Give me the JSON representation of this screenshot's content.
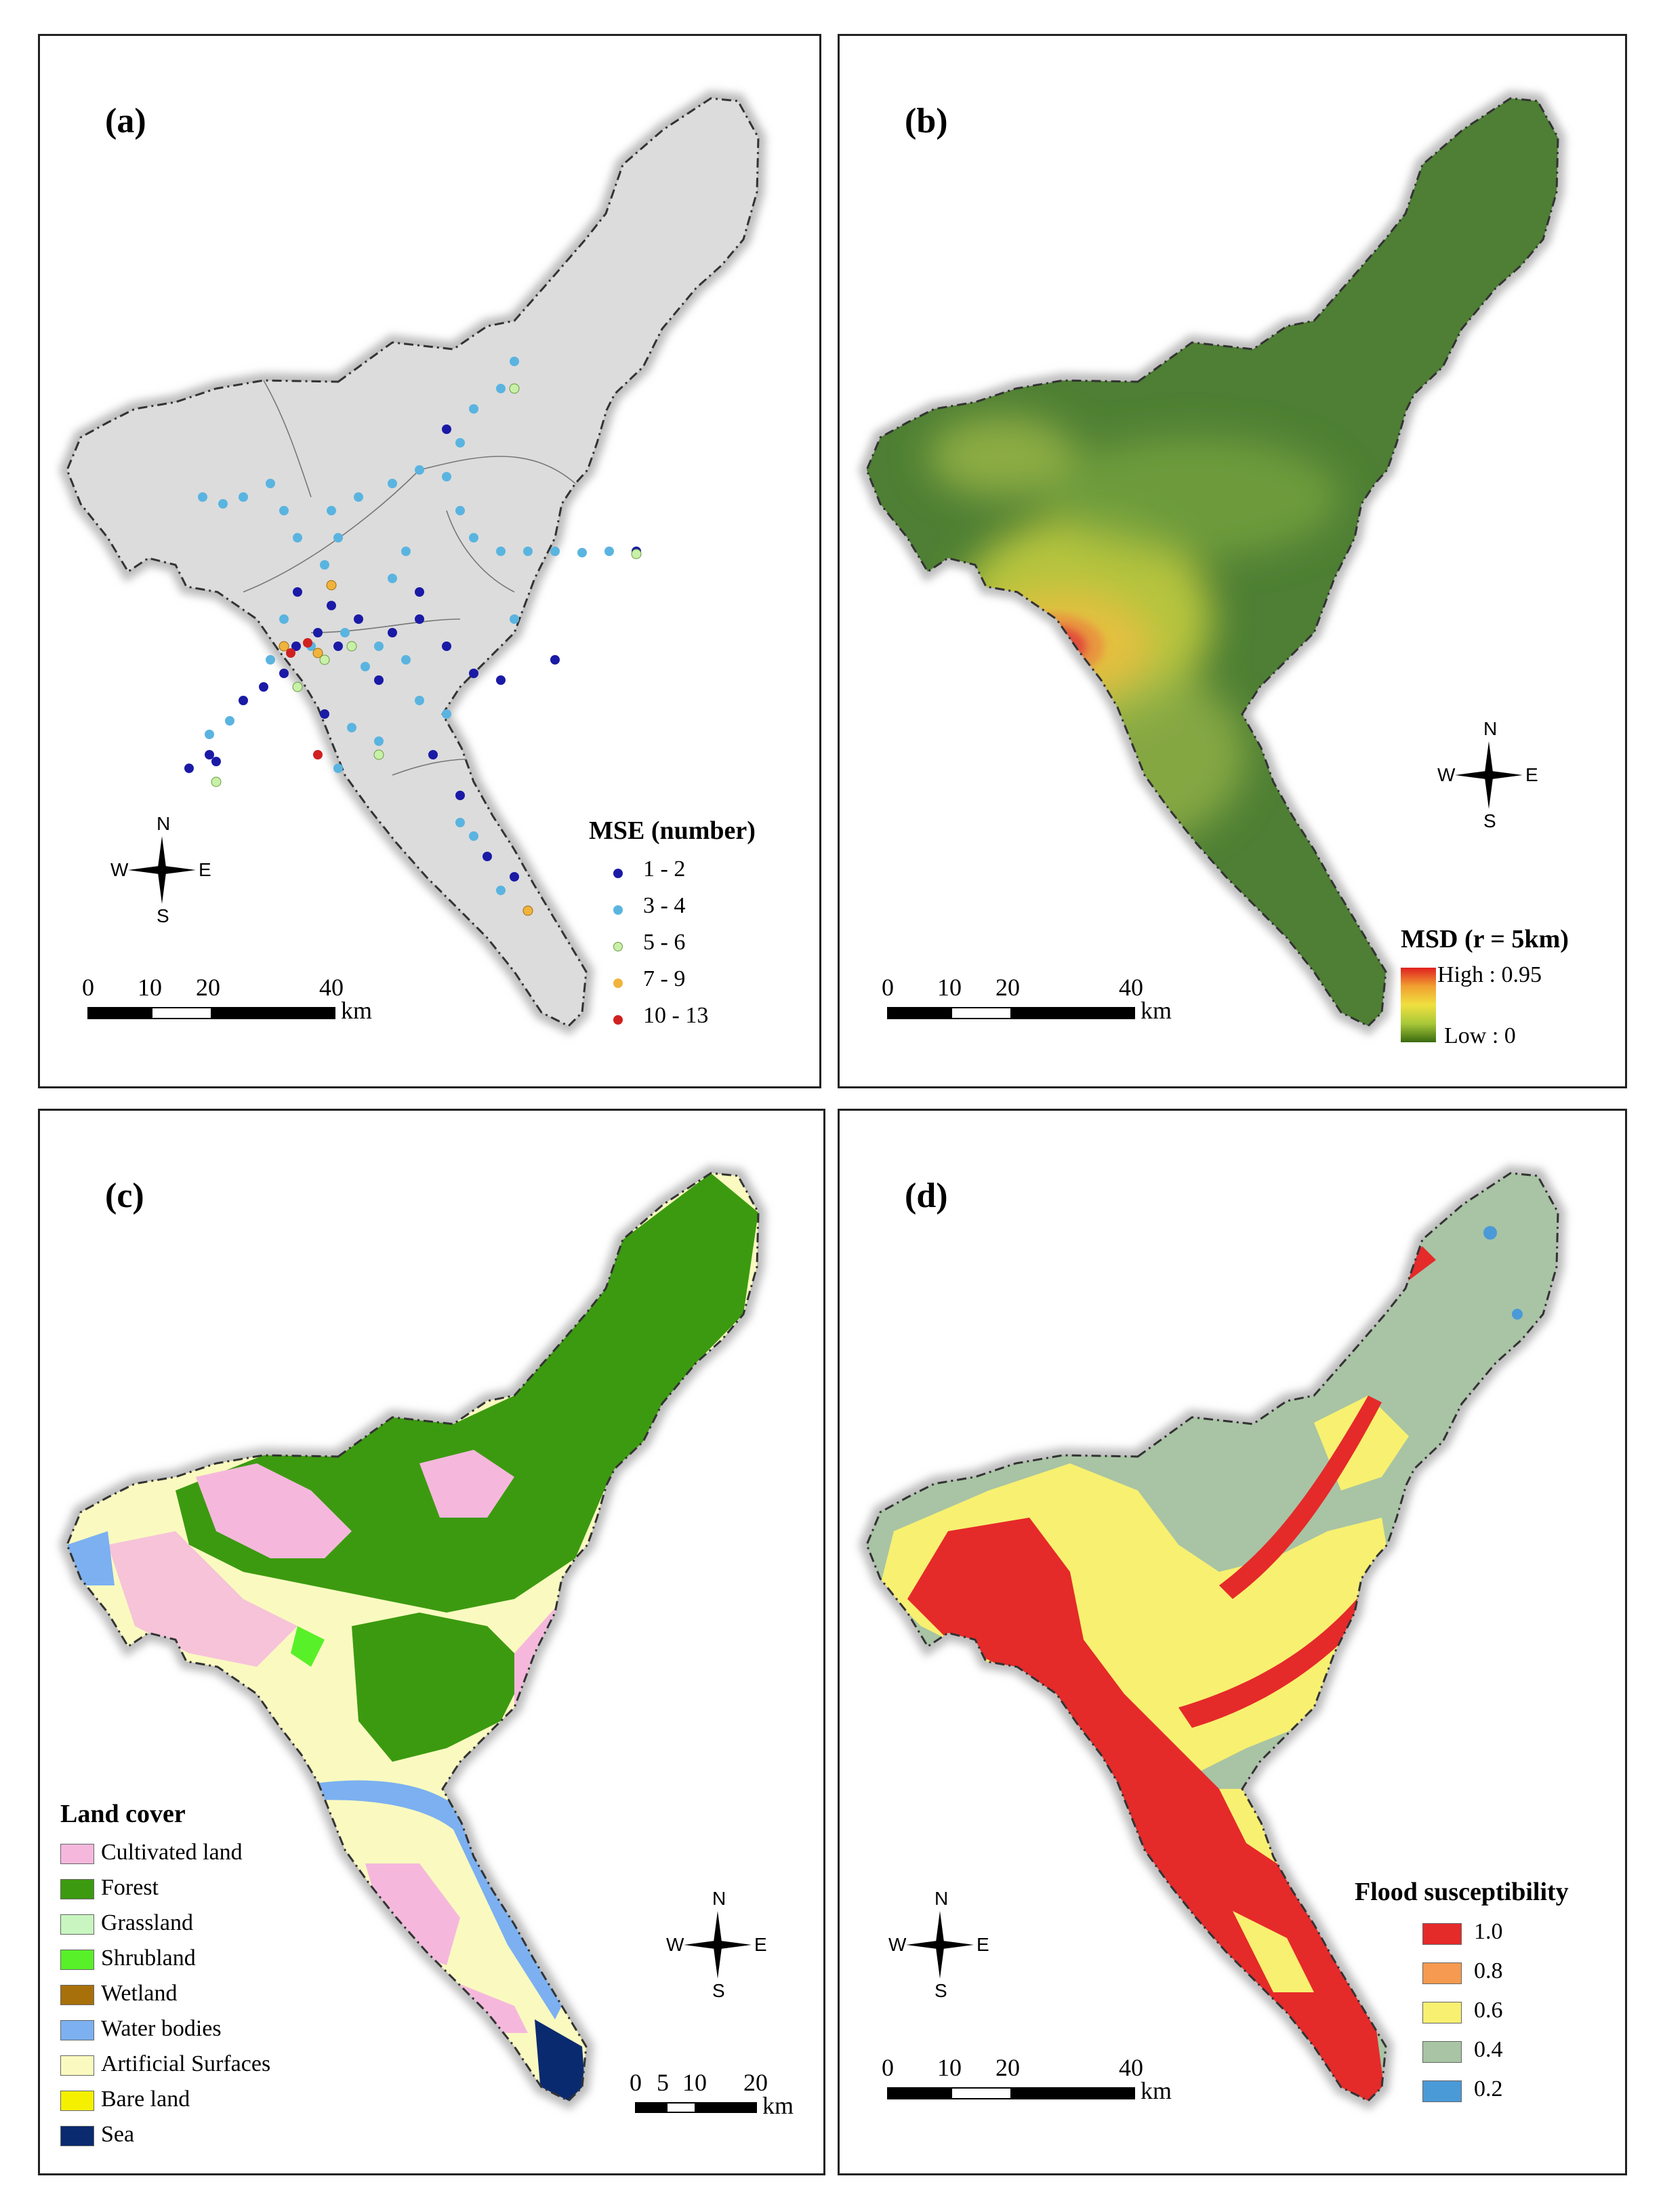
{
  "panels": {
    "a": {
      "label": "(a)",
      "legend_title": "MSE (number)",
      "legend": [
        {
          "label": "1 - 2",
          "color": "#1a1aa6"
        },
        {
          "label": "3 - 4",
          "color": "#5ab4e0"
        },
        {
          "label": "5 - 6",
          "color": "#c8f0a8"
        },
        {
          "label": "7 - 9",
          "color": "#f0b43c"
        },
        {
          "label": "10 - 13",
          "color": "#d02020"
        }
      ],
      "scale": {
        "ticks": [
          "0",
          "10",
          "20",
          "40"
        ],
        "unit": "km"
      },
      "compass": {
        "n": "N",
        "s": "S",
        "e": "E",
        "w": "W"
      },
      "base_color": "#d9d9d9"
    },
    "b": {
      "label": "(b)",
      "legend_title": "MSD (r = 5km)",
      "legend_high": "High : 0.95",
      "legend_low": "Low : 0",
      "scale": {
        "ticks": [
          "0",
          "10",
          "20",
          "40"
        ],
        "unit": "km"
      },
      "compass": {
        "n": "N",
        "s": "S",
        "e": "E",
        "w": "W"
      },
      "base_color": "#4e7f34"
    },
    "c": {
      "label": "(c)",
      "legend_title": "Land cover",
      "legend": [
        {
          "label": "Cultivated land",
          "color": "#f5b8dc"
        },
        {
          "label": "Forest",
          "color": "#3c9a10"
        },
        {
          "label": "Grassland",
          "color": "#c8f5c0"
        },
        {
          "label": "Shrubland",
          "color": "#58f028"
        },
        {
          "label": "Wetland",
          "color": "#a8700a"
        },
        {
          "label": "Water bodies",
          "color": "#7cb0f0"
        },
        {
          "label": "Artificial Surfaces",
          "color": "#fafac0"
        },
        {
          "label": "Bare land",
          "color": "#f5f000"
        },
        {
          "label": "Sea",
          "color": "#0a2a70"
        }
      ],
      "scale": {
        "ticks": [
          "0",
          "5",
          "10",
          "20"
        ],
        "unit": "km"
      },
      "compass": {
        "n": "N",
        "s": "S",
        "e": "E",
        "w": "W"
      }
    },
    "d": {
      "label": "(d)",
      "legend_title": "Flood susceptibility",
      "legend": [
        {
          "label": "1.0",
          "color": "#e52a2a"
        },
        {
          "label": "0.8",
          "color": "#f59a50"
        },
        {
          "label": "0.6",
          "color": "#f8f070"
        },
        {
          "label": "0.4",
          "color": "#a8c4a4"
        },
        {
          "label": "0.2",
          "color": "#4a9ad8"
        }
      ],
      "scale": {
        "ticks": [
          "0",
          "10",
          "20",
          "40"
        ],
        "unit": "km"
      },
      "compass": {
        "n": "N",
        "s": "S",
        "e": "E",
        "w": "W"
      }
    }
  }
}
